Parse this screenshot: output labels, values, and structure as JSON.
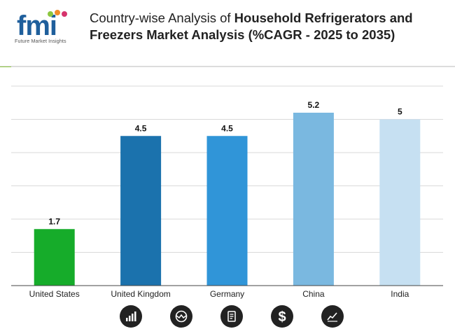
{
  "brand": {
    "logo_text": "fmi",
    "tagline": "Future Market Insights"
  },
  "title": {
    "prefix": "Country-wise Analysis of ",
    "bold_line1": "Household Refrigerators and",
    "bold_line2": "Freezers Market Analysis (%CAGR - 2025 to 2035)"
  },
  "chart_data": {
    "type": "bar",
    "title": "Country-wise Analysis of Household Refrigerators and Freezers Market Analysis (%CAGR - 2025 to 2035)",
    "categories": [
      "United States",
      "United Kingdom",
      "Germany",
      "China",
      "India"
    ],
    "values": [
      1.7,
      4.5,
      4.5,
      5.2,
      5
    ],
    "value_labels": [
      "1.7",
      "4.5",
      "4.5",
      "5.2",
      "5"
    ],
    "colors": [
      "#16ac2a",
      "#1b72ad",
      "#3095d8",
      "#7ab8e0",
      "#c6e0f2"
    ],
    "ylim": [
      0,
      6
    ],
    "y_grid_step": 1,
    "grid": true,
    "xlabel": "",
    "ylabel": ""
  },
  "footer_icons": [
    "bar-chart-icon",
    "globe-icon",
    "document-icon",
    "dollar-icon",
    "line-chart-icon"
  ]
}
